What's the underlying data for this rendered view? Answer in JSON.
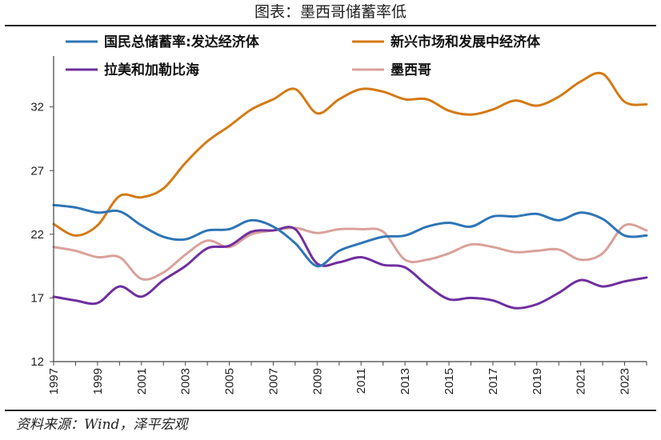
{
  "figure": {
    "title": "图表：墨西哥储蓄率低",
    "source": "资料来源：Wind，泽平宏观"
  },
  "chart_data": {
    "type": "line",
    "title": "图表：墨西哥储蓄率低",
    "xlabel": "",
    "ylabel": "",
    "x": [
      1997,
      1998,
      1999,
      2000,
      2001,
      2002,
      2003,
      2004,
      2005,
      2006,
      2007,
      2008,
      2009,
      2010,
      2011,
      2012,
      2013,
      2014,
      2015,
      2016,
      2017,
      2018,
      2019,
      2020,
      2021,
      2022,
      2023,
      2024
    ],
    "x_ticks": [
      "1997",
      "1999",
      "2001",
      "2003",
      "2005",
      "2007",
      "2009",
      "2011",
      "2013",
      "2015",
      "2017",
      "2019",
      "2021",
      "2023"
    ],
    "ylim": [
      12,
      36
    ],
    "y_ticks": [
      12,
      17,
      22,
      27,
      32
    ],
    "grid": false,
    "legend_position": "top",
    "series": [
      {
        "name": "国民总储蓄率:发达经济体",
        "color": "#2e75b6",
        "values": [
          24.3,
          24.1,
          23.7,
          23.8,
          22.7,
          21.8,
          21.6,
          22.3,
          22.4,
          23.1,
          22.6,
          21.3,
          19.5,
          20.7,
          21.3,
          21.8,
          21.9,
          22.6,
          22.9,
          22.6,
          23.4,
          23.4,
          23.6,
          23.1,
          23.7,
          23.2,
          21.9,
          21.9
        ]
      },
      {
        "name": "新兴市场和发展中经济体",
        "color": "#d47a14",
        "values": [
          22.8,
          21.9,
          22.7,
          25.0,
          24.9,
          25.6,
          27.6,
          29.3,
          30.5,
          31.8,
          32.6,
          33.4,
          31.5,
          32.6,
          33.4,
          33.2,
          32.6,
          32.6,
          31.7,
          31.4,
          31.8,
          32.5,
          32.1,
          32.8,
          34.0,
          34.6,
          32.4,
          32.2
        ]
      },
      {
        "name": "拉美和加勒比海",
        "color": "#6f2f9f",
        "values": [
          17.1,
          16.8,
          16.6,
          17.9,
          17.1,
          18.4,
          19.5,
          20.9,
          21.1,
          22.2,
          22.3,
          22.4,
          19.7,
          19.8,
          20.2,
          19.6,
          19.4,
          18.0,
          16.9,
          17.0,
          16.8,
          16.2,
          16.5,
          17.4,
          18.4,
          17.9,
          18.3,
          18.6
        ]
      },
      {
        "name": "墨西哥",
        "color": "#d9a19b",
        "values": [
          21.0,
          20.7,
          20.2,
          20.2,
          18.5,
          19.0,
          20.4,
          21.5,
          21.0,
          22.0,
          22.3,
          22.5,
          22.1,
          22.4,
          22.4,
          22.2,
          20.0,
          20.0,
          20.5,
          21.2,
          21.0,
          20.6,
          20.7,
          20.8,
          20.0,
          20.5,
          22.7,
          22.3
        ]
      }
    ]
  }
}
